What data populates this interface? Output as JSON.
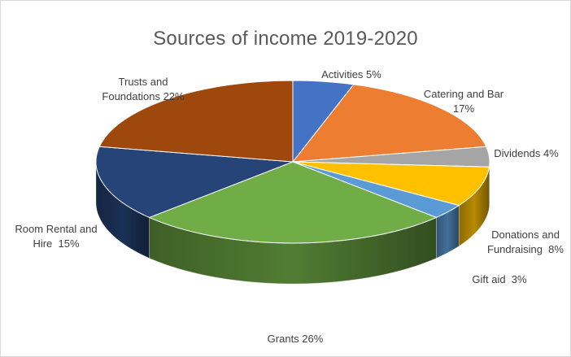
{
  "chart_data": {
    "type": "pie",
    "title": "Sources of income 2019-2020",
    "slices": [
      {
        "label": "Activities",
        "label_lines": [
          "Activities 5%"
        ],
        "value": 5,
        "color": "#4472C4"
      },
      {
        "label": "Catering and Bar",
        "label_lines": [
          "Catering and Bar",
          "17%"
        ],
        "value": 17,
        "color": "#ED7D31"
      },
      {
        "label": "Dividends",
        "label_lines": [
          "Dividends 4%"
        ],
        "value": 4,
        "color": "#A5A5A5"
      },
      {
        "label": "Donations and Fundraising",
        "label_lines": [
          "Donations and",
          "Fundraising  8%"
        ],
        "value": 8,
        "color": "#FFC000"
      },
      {
        "label": "Gift aid",
        "label_lines": [
          "Gift aid  3%"
        ],
        "value": 3,
        "color": "#5B9BD5"
      },
      {
        "label": "Grants",
        "label_lines": [
          "Grants 26%"
        ],
        "value": 26,
        "color": "#70AD47"
      },
      {
        "label": "Room Rental and Hire",
        "label_lines": [
          "Room Rental and",
          "Hire  15%"
        ],
        "value": 15,
        "color": "#264478"
      },
      {
        "label": "Trusts and Foundations",
        "label_lines": [
          "Trusts and",
          "Foundations 22%"
        ],
        "value": 22,
        "color": "#9E480E"
      }
    ],
    "style": "3d-pie",
    "legend": "none"
  }
}
